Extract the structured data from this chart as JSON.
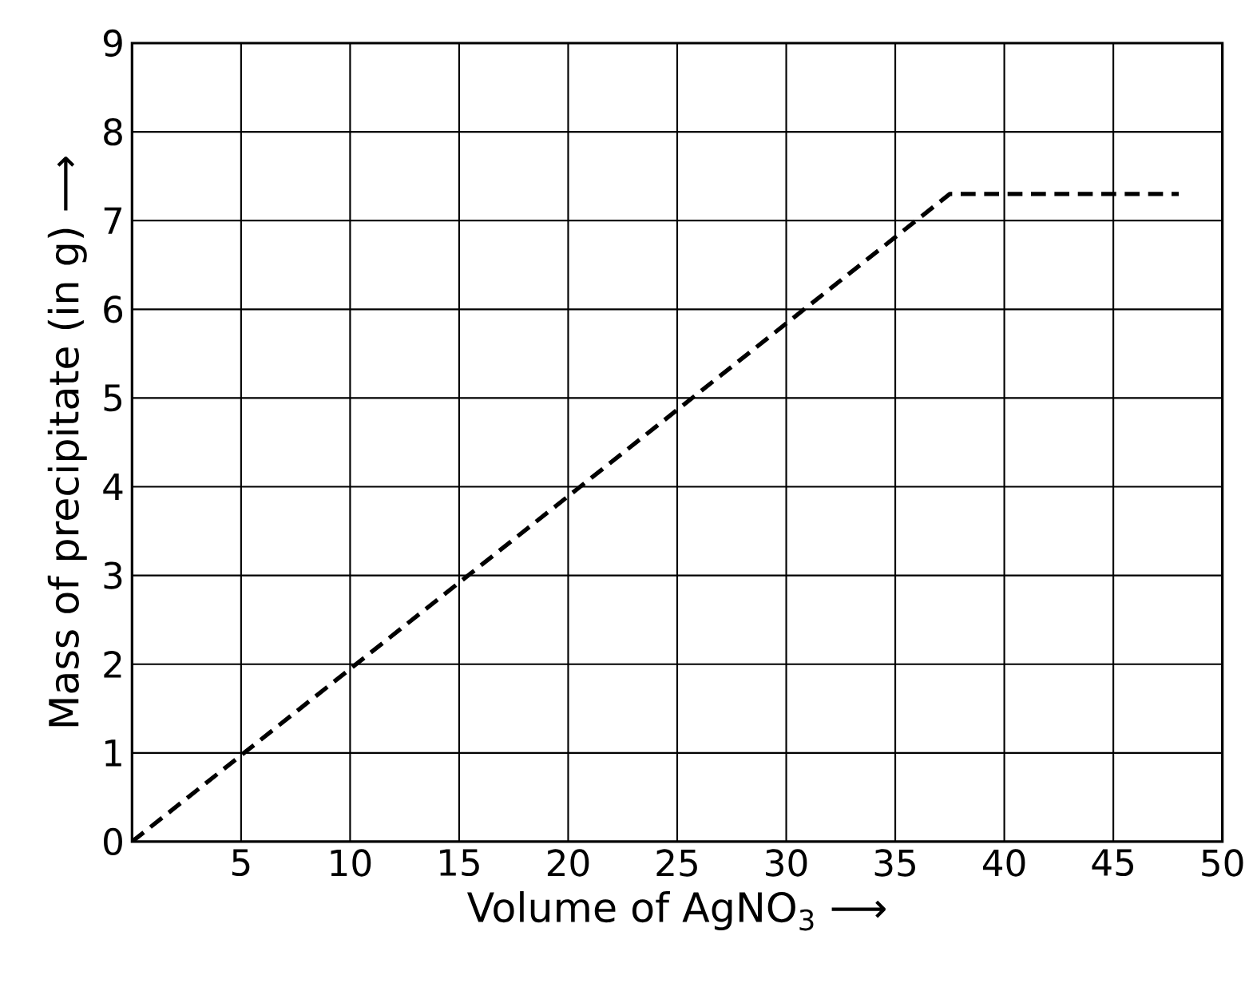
{
  "chart_data": {
    "type": "line",
    "xlabel": "Volume of AgNO$_{3}$ ⟶",
    "ylabel": "Mass of precipitate (in g) ⟶",
    "x": [
      0,
      37.5,
      48
    ],
    "series": [
      {
        "color": "#000000",
        "values": [
          0,
          7.3,
          7.3
        ]
      }
    ],
    "xlim": [
      0,
      50
    ],
    "ylim": [
      0,
      9
    ],
    "xticks": [
      {
        "value": 0,
        "label": null
      },
      5,
      10,
      15,
      20,
      25,
      30,
      35,
      40,
      45,
      50
    ],
    "yticks": [
      0,
      1,
      2,
      3,
      4,
      5,
      6,
      7,
      8,
      9
    ],
    "grid": true,
    "marker": "none",
    "line_style": "dashed"
  }
}
